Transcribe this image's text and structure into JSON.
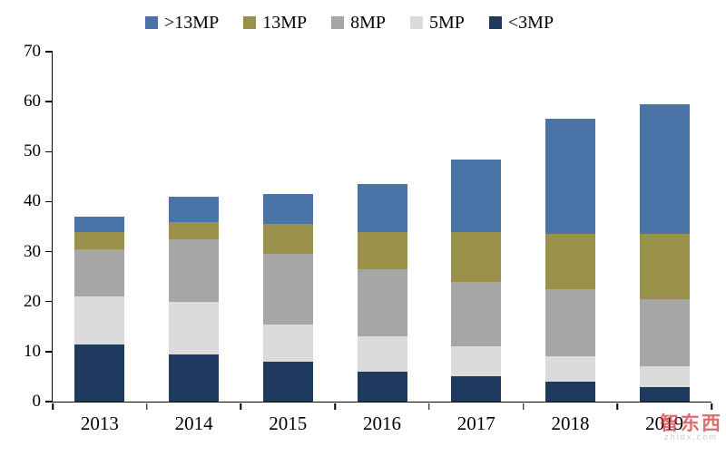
{
  "watermark": {
    "brand": "智东西",
    "site": "zhidx.com"
  },
  "chart_data": {
    "type": "bar",
    "stacked": true,
    "title": "",
    "xlabel": "",
    "ylabel": "",
    "categories": [
      "2013",
      "2014",
      "2015",
      "2016",
      "2017",
      "2018",
      "2019"
    ],
    "series": [
      {
        "name": "<3MP",
        "color": "#1E3A5F",
        "values": [
          11.5,
          9.5,
          8,
          6,
          5,
          4,
          3
        ]
      },
      {
        "name": "5MP",
        "color": "#DBDBDB",
        "values": [
          9.5,
          10.5,
          7.5,
          7,
          6,
          5,
          4
        ]
      },
      {
        "name": "8MP",
        "color": "#A6A6A6",
        "values": [
          9.5,
          12.5,
          14,
          13.5,
          13,
          13.5,
          13.5
        ]
      },
      {
        "name": "13MP",
        "color": "#99904A",
        "values": [
          3.5,
          3.5,
          6,
          7.5,
          10,
          11,
          13
        ]
      },
      {
        "name": ">13MP",
        "color": "#4A74A8",
        "values": [
          3,
          5,
          6,
          9.5,
          14.5,
          23,
          26
        ]
      }
    ],
    "legend_order": [
      ">13MP",
      "13MP",
      "8MP",
      "5MP",
      "<3MP"
    ],
    "legend_position": "top",
    "ylim": [
      0,
      70
    ],
    "yticks": [
      0,
      10,
      20,
      30,
      40,
      50,
      60,
      70
    ],
    "grid": false
  }
}
